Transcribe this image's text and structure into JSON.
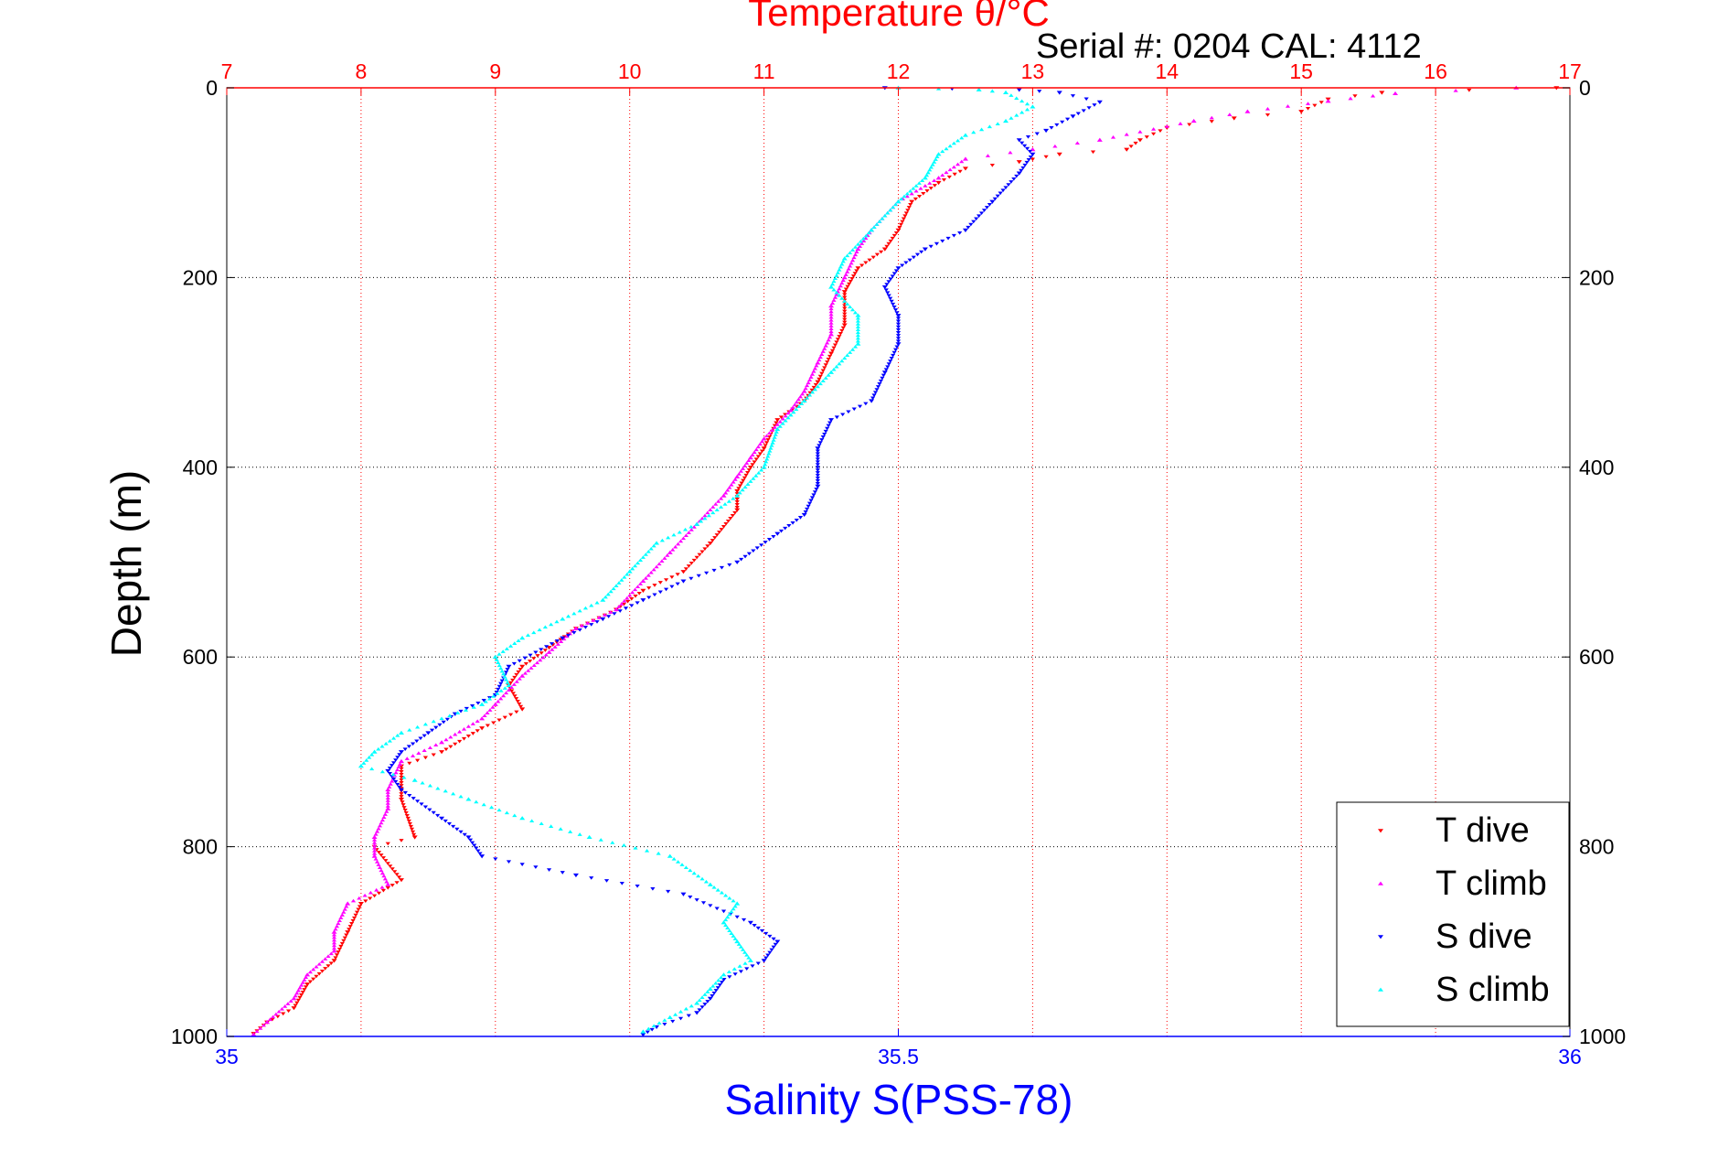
{
  "chart_data": {
    "type": "scatter",
    "title": "Temperature θ/°C",
    "subtitle": "Serial #: 0204  CAL: 4112",
    "xlabel": "Salinity S(PSS-78)",
    "ylabel": "Depth (m)",
    "x_bottom": {
      "label": "Salinity S(PSS-78)",
      "range": [
        35,
        36
      ],
      "ticks": [
        "35",
        "35.5",
        "36"
      ],
      "color": "#0000ff"
    },
    "x_top": {
      "label": "Temperature θ/°C",
      "range": [
        7,
        17
      ],
      "ticks": [
        "7",
        "8",
        "9",
        "10",
        "11",
        "12",
        "13",
        "14",
        "15",
        "16",
        "17"
      ],
      "color": "#ff0000"
    },
    "y": {
      "range": [
        0,
        1000
      ],
      "reversed": true,
      "ticks": [
        "0",
        "200",
        "400",
        "600",
        "800",
        "1000"
      ]
    },
    "grid": true,
    "legend_position": "bottom-right",
    "series": [
      {
        "name": "T dive",
        "axis": "temperature",
        "color": "#ff0000",
        "marker": "triangle-down",
        "points": [
          [
            16.9,
            0
          ],
          [
            15.6,
            5
          ],
          [
            15.2,
            12
          ],
          [
            15.0,
            25
          ],
          [
            14.5,
            32
          ],
          [
            14.0,
            42
          ],
          [
            13.8,
            55
          ],
          [
            13.7,
            65
          ],
          [
            13.2,
            70
          ],
          [
            12.9,
            78
          ],
          [
            12.5,
            85
          ],
          [
            12.3,
            100
          ],
          [
            12.1,
            120
          ],
          [
            12.0,
            150
          ],
          [
            11.9,
            170
          ],
          [
            11.7,
            190
          ],
          [
            11.6,
            215
          ],
          [
            11.6,
            250
          ],
          [
            11.5,
            280
          ],
          [
            11.4,
            310
          ],
          [
            11.3,
            330
          ],
          [
            11.1,
            350
          ],
          [
            11.0,
            380
          ],
          [
            10.9,
            400
          ],
          [
            10.8,
            425
          ],
          [
            10.8,
            445
          ],
          [
            10.6,
            480
          ],
          [
            10.4,
            510
          ],
          [
            10.1,
            530
          ],
          [
            9.9,
            550
          ],
          [
            9.6,
            570
          ],
          [
            9.4,
            590
          ],
          [
            9.2,
            610
          ],
          [
            9.1,
            630
          ],
          [
            9.2,
            655
          ],
          [
            8.9,
            675
          ],
          [
            8.6,
            700
          ],
          [
            8.3,
            715
          ],
          [
            8.3,
            750
          ],
          [
            8.4,
            790
          ],
          [
            8.1,
            800
          ],
          [
            8.3,
            835
          ],
          [
            8.0,
            860
          ],
          [
            7.9,
            890
          ],
          [
            7.8,
            920
          ],
          [
            7.6,
            945
          ],
          [
            7.5,
            970
          ],
          [
            7.3,
            985
          ],
          [
            7.2,
            997
          ]
        ]
      },
      {
        "name": "T climb",
        "axis": "temperature",
        "color": "#ff00ff",
        "marker": "triangle-up",
        "points": [
          [
            16.6,
            0
          ],
          [
            15.7,
            6
          ],
          [
            15.2,
            14
          ],
          [
            14.6,
            25
          ],
          [
            14.2,
            35
          ],
          [
            13.5,
            55
          ],
          [
            13.0,
            65
          ],
          [
            12.5,
            75
          ],
          [
            12.3,
            95
          ],
          [
            12.0,
            120
          ],
          [
            11.8,
            150
          ],
          [
            11.7,
            170
          ],
          [
            11.6,
            200
          ],
          [
            11.5,
            230
          ],
          [
            11.5,
            260
          ],
          [
            11.4,
            290
          ],
          [
            11.3,
            320
          ],
          [
            11.2,
            340
          ],
          [
            11.0,
            370
          ],
          [
            10.9,
            390
          ],
          [
            10.8,
            410
          ],
          [
            10.7,
            430
          ],
          [
            10.5,
            460
          ],
          [
            10.3,
            490
          ],
          [
            10.1,
            520
          ],
          [
            9.9,
            550
          ],
          [
            9.6,
            570
          ],
          [
            9.4,
            595
          ],
          [
            9.2,
            620
          ],
          [
            9.0,
            650
          ],
          [
            8.9,
            665
          ],
          [
            8.6,
            690
          ],
          [
            8.3,
            710
          ],
          [
            8.2,
            740
          ],
          [
            8.2,
            760
          ],
          [
            8.1,
            790
          ],
          [
            8.1,
            810
          ],
          [
            8.2,
            840
          ],
          [
            7.9,
            860
          ],
          [
            7.8,
            890
          ],
          [
            7.8,
            910
          ],
          [
            7.6,
            935
          ],
          [
            7.5,
            960
          ],
          [
            7.3,
            985
          ],
          [
            7.2,
            998
          ]
        ]
      },
      {
        "name": "S dive",
        "axis": "salinity",
        "color": "#0000ff",
        "marker": "triangle-down",
        "points": [
          [
            35.49,
            0
          ],
          [
            35.59,
            2
          ],
          [
            35.62,
            5
          ],
          [
            35.65,
            15
          ],
          [
            35.63,
            30
          ],
          [
            35.61,
            45
          ],
          [
            35.59,
            55
          ],
          [
            35.6,
            70
          ],
          [
            35.59,
            90
          ],
          [
            35.57,
            120
          ],
          [
            35.55,
            150
          ],
          [
            35.52,
            170
          ],
          [
            35.5,
            190
          ],
          [
            35.49,
            210
          ],
          [
            35.5,
            240
          ],
          [
            35.5,
            270
          ],
          [
            35.49,
            300
          ],
          [
            35.48,
            330
          ],
          [
            35.45,
            350
          ],
          [
            35.44,
            380
          ],
          [
            35.44,
            420
          ],
          [
            35.43,
            450
          ],
          [
            35.41,
            470
          ],
          [
            35.38,
            500
          ],
          [
            35.34,
            520
          ],
          [
            35.31,
            540
          ],
          [
            35.28,
            560
          ],
          [
            35.25,
            580
          ],
          [
            35.21,
            610
          ],
          [
            35.2,
            640
          ],
          [
            35.17,
            660
          ],
          [
            35.15,
            680
          ],
          [
            35.13,
            700
          ],
          [
            35.12,
            720
          ],
          [
            35.13,
            740
          ],
          [
            35.16,
            770
          ],
          [
            35.18,
            790
          ],
          [
            35.19,
            810
          ],
          [
            35.26,
            830
          ],
          [
            35.34,
            850
          ],
          [
            35.39,
            880
          ],
          [
            35.41,
            900
          ],
          [
            35.4,
            920
          ],
          [
            35.37,
            940
          ],
          [
            35.36,
            960
          ],
          [
            35.35,
            975
          ],
          [
            35.32,
            990
          ],
          [
            35.31,
            998
          ]
        ]
      },
      {
        "name": "S climb",
        "axis": "salinity",
        "color": "#00ffff",
        "marker": "triangle-up",
        "points": [
          [
            35.5,
            0
          ],
          [
            35.56,
            2
          ],
          [
            35.58,
            5
          ],
          [
            35.6,
            20
          ],
          [
            35.58,
            35
          ],
          [
            35.55,
            50
          ],
          [
            35.53,
            70
          ],
          [
            35.52,
            95
          ],
          [
            35.5,
            120
          ],
          [
            35.48,
            150
          ],
          [
            35.46,
            180
          ],
          [
            35.45,
            210
          ],
          [
            35.47,
            240
          ],
          [
            35.47,
            270
          ],
          [
            35.45,
            300
          ],
          [
            35.43,
            330
          ],
          [
            35.41,
            360
          ],
          [
            35.4,
            400
          ],
          [
            35.38,
            430
          ],
          [
            35.35,
            460
          ],
          [
            35.32,
            480
          ],
          [
            35.3,
            510
          ],
          [
            35.28,
            540
          ],
          [
            35.25,
            560
          ],
          [
            35.22,
            580
          ],
          [
            35.2,
            600
          ],
          [
            35.21,
            630
          ],
          [
            35.19,
            650
          ],
          [
            35.13,
            680
          ],
          [
            35.11,
            700
          ],
          [
            35.1,
            715
          ],
          [
            35.14,
            730
          ],
          [
            35.18,
            750
          ],
          [
            35.22,
            770
          ],
          [
            35.27,
            790
          ],
          [
            35.33,
            810
          ],
          [
            35.36,
            840
          ],
          [
            35.38,
            860
          ],
          [
            35.37,
            880
          ],
          [
            35.38,
            900
          ],
          [
            35.39,
            920
          ],
          [
            35.37,
            935
          ],
          [
            35.36,
            950
          ],
          [
            35.35,
            965
          ],
          [
            35.33,
            980
          ],
          [
            35.31,
            995
          ]
        ]
      }
    ]
  }
}
